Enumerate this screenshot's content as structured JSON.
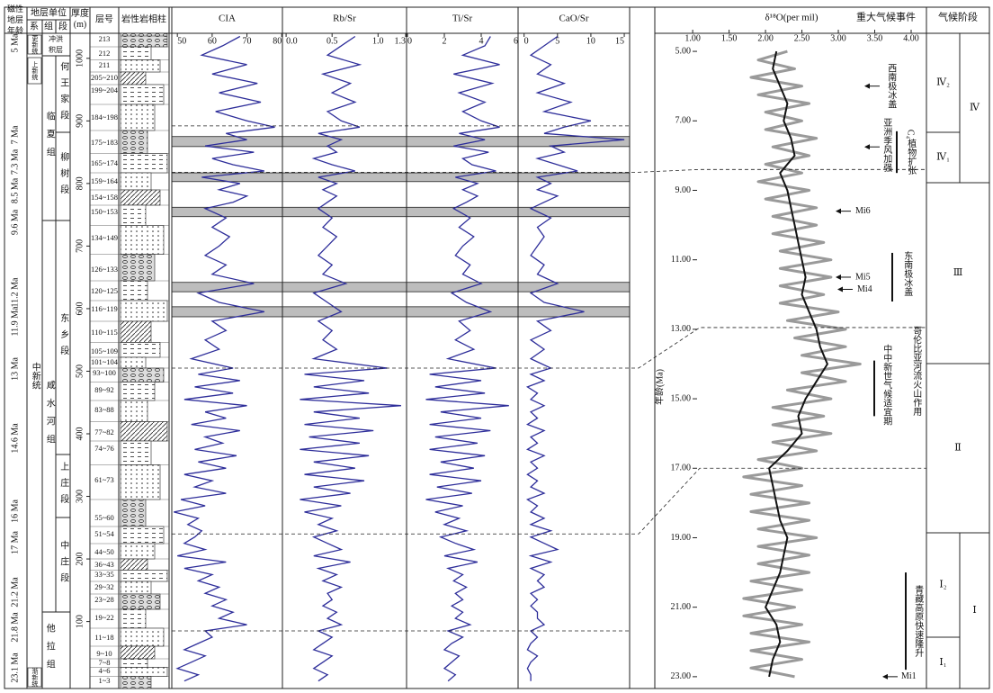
{
  "table": {
    "age_header": [
      "磁性",
      "地层",
      "年龄"
    ],
    "unit_header": "地层单位",
    "system_header": "系",
    "formation_header": "组",
    "member_header": "段",
    "thickness_header": [
      "厚度",
      "(m)"
    ],
    "layer_header": "层号",
    "lithology_header": "岩性岩相柱",
    "ages": [
      "5 Ma",
      "7 Ma",
      "7.3 Ma",
      "8.5 Ma",
      "9.6 Ma",
      "11.2 Ma",
      "11.9 Ma",
      "13 Ma",
      "14.6 Ma",
      "16 Ma",
      "17 Ma",
      "21.2 Ma",
      "21.8 Ma",
      "23.1 Ma"
    ],
    "systems": [
      "更新统",
      "上新统",
      "中新统",
      "渐新统"
    ],
    "formations": [
      [
        "冲洪",
        "积层"
      ],
      "临夏组",
      "咸水河组",
      "他拉组"
    ],
    "members": [
      "何王家段",
      "柳树段",
      "东乡段",
      "上庄段",
      "中庄段"
    ],
    "layers": [
      "213",
      "212",
      "211",
      "205~210",
      "199~204",
      "184~198",
      "175~183",
      "165~174",
      "159~164",
      "154~158",
      "150~153",
      "134~149",
      "126~133",
      "120~125",
      "116~119",
      "110~115",
      "105~109",
      "101~104",
      "93~100",
      "89~92",
      "83~88",
      "77~82",
      "74~76",
      "61~73",
      "55~60",
      "51~54",
      "44~50",
      "36~43",
      "33~35",
      "29~32",
      "23~28",
      "19~22",
      "11~18",
      "9~10",
      "7~8",
      "4~6",
      "1~3"
    ]
  },
  "chart_data": [
    {
      "type": "line",
      "y_reversed": false,
      "ylim": [
        -7,
        1040
      ],
      "yticks": [
        100,
        200,
        300,
        400,
        500,
        600,
        700,
        800,
        900,
        1000
      ],
      "highlight_ranges": [
        [
          859,
          875
        ],
        [
          803,
          817
        ],
        [
          747,
          762
        ],
        [
          627,
          642
        ],
        [
          587,
          603
        ]
      ],
      "depth": [
        1035,
        1020,
        1005,
        990,
        975,
        960,
        945,
        930,
        915,
        900,
        890,
        880,
        870,
        860,
        850,
        840,
        830,
        820,
        810,
        800,
        790,
        780,
        770,
        760,
        745,
        730,
        715,
        700,
        685,
        670,
        655,
        640,
        625,
        610,
        595,
        580,
        565,
        550,
        535,
        520,
        505,
        495,
        485,
        475,
        465,
        455,
        445,
        435,
        425,
        415,
        405,
        395,
        385,
        375,
        365,
        355,
        345,
        335,
        325,
        315,
        305,
        295,
        285,
        275,
        265,
        255,
        245,
        235,
        225,
        215,
        205,
        195,
        185,
        175,
        165,
        155,
        145,
        135,
        125,
        115,
        105,
        95,
        85,
        75,
        65,
        55,
        45,
        35,
        25,
        15,
        5
      ],
      "panels": [
        {
          "title": "CIA",
          "color": "#2e2e9a",
          "xlim": [
            48.4,
            80.2
          ],
          "xticks": [
            50,
            60,
            70,
            80
          ],
          "values": [
            68,
            63,
            57,
            70,
            60,
            73,
            62,
            74,
            61,
            70,
            78,
            64,
            70,
            58,
            72,
            60,
            66,
            75,
            57,
            68,
            62,
            70,
            66,
            58,
            64,
            60,
            65,
            62,
            58,
            64,
            60,
            72,
            56,
            62,
            75,
            60,
            64,
            58,
            62,
            54,
            66,
            56,
            68,
            55,
            66,
            52,
            70,
            58,
            64,
            54,
            68,
            58,
            63,
            55,
            67,
            56,
            64,
            52,
            60,
            55,
            64,
            51,
            58,
            49,
            56,
            53,
            57,
            55,
            52,
            58,
            50,
            64,
            52,
            60,
            56,
            62,
            58,
            64,
            60,
            66,
            62,
            70,
            58,
            60,
            56,
            52,
            58,
            54,
            50,
            56,
            52
          ]
        },
        {
          "title": "Rb/Sr",
          "color": "#2e2e9a",
          "xlim": [
            -0.04,
            1.31
          ],
          "xticks": [
            {
              "value": 0,
              "label": "0.0"
            },
            0.5,
            {
              "value": 1,
              "label": "1.0"
            },
            1.3
          ],
          "values": [
            0.75,
            0.6,
            0.45,
            0.8,
            0.4,
            0.7,
            0.5,
            0.75,
            0.45,
            0.6,
            0.8,
            0.35,
            0.6,
            0.45,
            0.55,
            0.3,
            0.5,
            0.75,
            0.35,
            0.55,
            0.4,
            0.55,
            0.45,
            0.35,
            0.5,
            0.4,
            0.55,
            0.45,
            0.35,
            0.5,
            0.4,
            0.65,
            0.3,
            0.45,
            0.6,
            0.35,
            0.5,
            0.4,
            0.55,
            0.3,
            1.1,
            0.2,
            0.85,
            0.3,
            0.9,
            0.15,
            1.25,
            0.3,
            0.8,
            0.2,
            0.95,
            0.25,
            0.8,
            0.15,
            0.9,
            0.3,
            0.75,
            0.2,
            0.85,
            0.3,
            0.7,
            0.15,
            0.6,
            0.2,
            0.5,
            0.35,
            0.55,
            0.3,
            0.45,
            0.6,
            0.3,
            0.7,
            0.35,
            0.55,
            0.4,
            0.6,
            0.45,
            0.5,
            0.4,
            0.55,
            0.45,
            0.6,
            0.35,
            0.5,
            0.4,
            0.3,
            0.5,
            0.4,
            0.3,
            0.45,
            0.35
          ]
        },
        {
          "title": "Ti/Sr",
          "color": "#2e2e9a",
          "xlim": [
            -0.05,
            6.0
          ],
          "xticks": [
            0,
            2,
            4,
            6
          ],
          "values": [
            4.5,
            4.2,
            3.0,
            5.0,
            2.5,
            4.6,
            2.8,
            4.2,
            3.0,
            4.0,
            5.0,
            2.8,
            4.2,
            2.5,
            4.4,
            3.0,
            3.5,
            4.8,
            2.6,
            3.8,
            3.0,
            3.8,
            3.2,
            2.5,
            3.4,
            2.8,
            3.6,
            3.0,
            2.6,
            3.4,
            3.0,
            4.0,
            2.4,
            3.2,
            4.5,
            2.8,
            3.4,
            2.6,
            3.6,
            2.2,
            4.8,
            1.2,
            4.0,
            1.5,
            4.2,
            1.0,
            5.5,
            1.8,
            4.0,
            1.2,
            4.5,
            1.5,
            3.8,
            1.2,
            4.2,
            1.8,
            3.6,
            1.2,
            4.0,
            1.6,
            3.5,
            1.0,
            3.0,
            1.5,
            2.8,
            2.0,
            3.2,
            1.8,
            2.6,
            3.6,
            2.0,
            3.8,
            2.2,
            3.0,
            2.5,
            3.2,
            2.6,
            3.0,
            2.4,
            3.0,
            2.6,
            3.4,
            2.2,
            3.0,
            2.4,
            2.0,
            2.8,
            2.4,
            2.0,
            2.6,
            2.2
          ]
        },
        {
          "title": "CaO/Sr",
          "color": "#2e2e9a",
          "xlim": [
            -0.9,
            15.8
          ],
          "xticks": [
            0,
            5,
            10,
            15
          ],
          "values": [
            5,
            3,
            1,
            4,
            2,
            6,
            2,
            7,
            3,
            10,
            6,
            3,
            15,
            4,
            6,
            2,
            5,
            8,
            2,
            4,
            2,
            5,
            3,
            1,
            4,
            2,
            3,
            2,
            1,
            3,
            2,
            5,
            1,
            3,
            9,
            2,
            4,
            1,
            3,
            1,
            4,
            1,
            3,
            0.5,
            2,
            1,
            3,
            1,
            2,
            0.5,
            3,
            1,
            2,
            0.5,
            3,
            1,
            2,
            0.5,
            2,
            1,
            3,
            0.5,
            2,
            1,
            3,
            1,
            4,
            1,
            3,
            5,
            1,
            4,
            1,
            3,
            2,
            3,
            1,
            2,
            1,
            2,
            2,
            3,
            1,
            2,
            1,
            0.5,
            2,
            1,
            0.5,
            1,
            1
          ]
        }
      ]
    },
    {
      "type": "line",
      "title": "δ¹⁸O(per mil)",
      "events_header": "重大气候事件",
      "stage_header": "气候阶段",
      "y_label": "年龄(Ma)",
      "y_reversed": true,
      "xlim": [
        0.48,
        4.21
      ],
      "xticks": [
        {
          "value": 1,
          "label": "1.00"
        },
        {
          "value": 1.5,
          "label": "1.50"
        },
        {
          "value": 2,
          "label": "2.00"
        },
        {
          "value": 2.5,
          "label": "2.50"
        },
        {
          "value": 3,
          "label": "3.00"
        },
        {
          "value": 3.5,
          "label": "3.50"
        },
        {
          "value": 4,
          "label": "4.00"
        }
      ],
      "ylim": [
        4.48,
        23.34
      ],
      "yticks": [
        {
          "value": 5,
          "label": "5.00"
        },
        {
          "value": 7,
          "label": "7.00"
        },
        {
          "value": 9,
          "label": "9.00"
        },
        {
          "value": 11,
          "label": "11.00"
        },
        {
          "value": 13,
          "label": "13.00"
        },
        {
          "value": 15,
          "label": "15.00"
        },
        {
          "value": 17,
          "label": "17.00"
        },
        {
          "value": 19,
          "label": "19.00"
        },
        {
          "value": 21,
          "label": "21.00"
        },
        {
          "value": 23,
          "label": "23.00"
        }
      ],
      "series": [
        {
          "color": "#9a9a9a",
          "x": [
            5,
            5.25,
            5.5,
            5.75,
            6,
            6.25,
            6.5,
            6.75,
            7,
            7.25,
            7.5,
            7.75,
            8,
            8.25,
            8.5,
            8.75,
            9,
            9.25,
            9.5,
            9.75,
            10,
            10.25,
            10.5,
            10.75,
            11,
            11.25,
            11.5,
            11.75,
            12,
            12.25,
            12.5,
            12.75,
            13,
            13.25,
            13.5,
            13.75,
            14,
            14.25,
            14.5,
            14.75,
            15,
            15.25,
            15.5,
            15.75,
            16,
            16.25,
            16.5,
            16.75,
            17,
            17.25,
            17.5,
            17.75,
            18,
            18.25,
            18.5,
            18.75,
            19,
            19.25,
            19.5,
            19.75,
            20,
            20.25,
            20.5,
            20.75,
            21,
            21.25,
            21.5,
            21.75,
            22,
            22.25,
            22.5,
            22.75,
            23
          ],
          "values": [
            2.3,
            1.9,
            2.4,
            1.8,
            2.5,
            1.9,
            2.6,
            2.0,
            2.5,
            2.0,
            2.7,
            2.1,
            2.6,
            2.0,
            2.5,
            1.9,
            2.6,
            2.0,
            2.7,
            2.1,
            2.7,
            2.1,
            2.8,
            2.2,
            2.9,
            2.2,
            2.9,
            2.2,
            2.8,
            2.2,
            3.0,
            2.3,
            3.1,
            2.4,
            3.1,
            2.5,
            3.3,
            2.5,
            3.1,
            2.3,
            2.9,
            2.1,
            2.8,
            2.1,
            2.9,
            2.1,
            2.7,
            1.9,
            2.5,
            1.7,
            2.5,
            1.8,
            2.6,
            1.8,
            2.6,
            1.9,
            2.7,
            1.9,
            2.6,
            1.9,
            2.6,
            1.8,
            2.5,
            1.7,
            2.4,
            1.7,
            2.5,
            1.8,
            2.6,
            1.8,
            2.5,
            1.8,
            2.4
          ]
        },
        {
          "color": "#111111",
          "x": [
            5,
            5.5,
            6,
            6.5,
            7,
            7.5,
            8,
            8.5,
            9,
            9.5,
            10,
            10.5,
            11,
            11.5,
            12,
            12.5,
            13,
            13.5,
            14,
            14.5,
            15,
            15.5,
            16,
            16.5,
            17,
            17.5,
            18,
            18.5,
            19,
            19.5,
            20,
            20.5,
            21,
            21.5,
            22,
            22.5,
            23
          ],
          "values": [
            2.15,
            2.1,
            2.2,
            2.3,
            2.25,
            2.35,
            2.4,
            2.2,
            2.3,
            2.35,
            2.4,
            2.45,
            2.5,
            2.55,
            2.5,
            2.6,
            2.7,
            2.75,
            2.85,
            2.7,
            2.55,
            2.45,
            2.5,
            2.3,
            2.05,
            2.1,
            2.15,
            2.2,
            2.3,
            2.25,
            2.2,
            2.1,
            2.0,
            2.15,
            2.2,
            2.1,
            2.05
          ]
        }
      ],
      "events": [
        "西南极冰盖",
        "亚洲季风加强",
        "C₄植物扩张",
        "Mi6",
        "Mi5",
        "Mi4",
        "东南极冰盖",
        "哥伦比亚河流火山作用",
        "中中新世气候适宜期",
        "青藏高原快速隆升",
        "Mi1"
      ],
      "stages": [
        "Ⅳ₂",
        "Ⅳ₁",
        "Ⅳ",
        "Ⅲ",
        "Ⅱ",
        "Ⅰ₂",
        "Ⅰ₁",
        "Ⅰ"
      ]
    }
  ]
}
